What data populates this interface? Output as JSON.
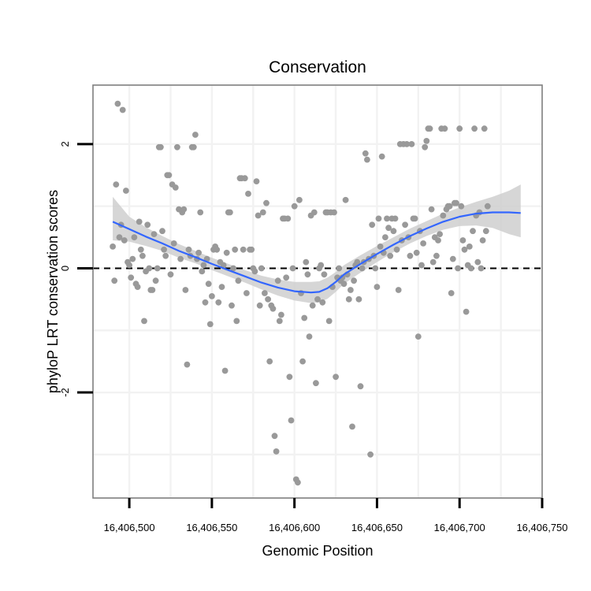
{
  "chart_data": {
    "type": "scatter",
    "title": "Conservation",
    "xlabel": "Genomic Position",
    "ylabel": "phyloP LRT conservation scores",
    "xlim": [
      16406478,
      16406750
    ],
    "ylim": [
      -3.7,
      2.95
    ],
    "x_ticks": [
      16406500,
      16406550,
      16406600,
      16406650,
      16406700,
      16406750
    ],
    "x_tick_labels": [
      "16,406,500",
      "16,406,550",
      "16,406,600",
      "16,406,650",
      "16,406,700",
      "16,406,750"
    ],
    "y_ticks": [
      2,
      0,
      -2
    ],
    "y_tick_labels": [
      "2",
      "0",
      "-2"
    ],
    "grid": true,
    "reference_line": {
      "y": 0,
      "style": "dashed"
    },
    "colors": {
      "points": "#999999",
      "smooth": "#3366ff",
      "band": "#cccccc",
      "panel_border": "#7f7f7f",
      "grid": "#f2f2f2"
    },
    "points": [
      [
        16406490,
        0.35
      ],
      [
        16406491,
        -0.2
      ],
      [
        16406492,
        1.35
      ],
      [
        16406493,
        2.65
      ],
      [
        16406494,
        0.5
      ],
      [
        16406495,
        0.7
      ],
      [
        16406496,
        2.55
      ],
      [
        16406497,
        0.45
      ],
      [
        16406498,
        1.25
      ],
      [
        16406499,
        0.1
      ],
      [
        16406500,
        0.05
      ],
      [
        16406501,
        -0.15
      ],
      [
        16406502,
        0.15
      ],
      [
        16406503,
        0.5
      ],
      [
        16406504,
        -0.25
      ],
      [
        16406505,
        -0.3
      ],
      [
        16406506,
        0.75
      ],
      [
        16406507,
        0.3
      ],
      [
        16406508,
        0.2
      ],
      [
        16406509,
        -0.85
      ],
      [
        16406510,
        -0.05
      ],
      [
        16406511,
        0.7
      ],
      [
        16406512,
        0.0
      ],
      [
        16406513,
        -0.35
      ],
      [
        16406514,
        -0.35
      ],
      [
        16406515,
        0.55
      ],
      [
        16406516,
        -0.2
      ],
      [
        16406517,
        0.0
      ],
      [
        16406518,
        1.95
      ],
      [
        16406519,
        1.95
      ],
      [
        16406520,
        0.6
      ],
      [
        16406521,
        0.3
      ],
      [
        16406522,
        0.2
      ],
      [
        16406523,
        1.5
      ],
      [
        16406524,
        1.5
      ],
      [
        16406525,
        -0.1
      ],
      [
        16406526,
        1.35
      ],
      [
        16406527,
        0.4
      ],
      [
        16406528,
        1.3
      ],
      [
        16406529,
        1.95
      ],
      [
        16406530,
        0.95
      ],
      [
        16406531,
        0.15
      ],
      [
        16406532,
        0.9
      ],
      [
        16406533,
        0.95
      ],
      [
        16406534,
        -0.35
      ],
      [
        16406535,
        -1.55
      ],
      [
        16406536,
        0.3
      ],
      [
        16406537,
        0.2
      ],
      [
        16406538,
        1.95
      ],
      [
        16406539,
        1.95
      ],
      [
        16406540,
        2.15
      ],
      [
        16406541,
        0.15
      ],
      [
        16406542,
        0.25
      ],
      [
        16406543,
        0.9
      ],
      [
        16406544,
        -0.05
      ],
      [
        16406545,
        0.05
      ],
      [
        16406546,
        -0.55
      ],
      [
        16406547,
        0.15
      ],
      [
        16406548,
        -0.25
      ],
      [
        16406549,
        -0.9
      ],
      [
        16406550,
        -0.45
      ],
      [
        16406551,
        0.3
      ],
      [
        16406552,
        0.35
      ],
      [
        16406553,
        0.3
      ],
      [
        16406554,
        -0.55
      ],
      [
        16406555,
        0.1
      ],
      [
        16406556,
        -0.3
      ],
      [
        16406557,
        0.05
      ],
      [
        16406558,
        -1.65
      ],
      [
        16406559,
        0.25
      ],
      [
        16406560,
        0.9
      ],
      [
        16406561,
        0.9
      ],
      [
        16406562,
        -0.6
      ],
      [
        16406563,
        0.0
      ],
      [
        16406564,
        0.3
      ],
      [
        16406565,
        -0.85
      ],
      [
        16406566,
        -0.2
      ],
      [
        16406567,
        1.45
      ],
      [
        16406568,
        1.45
      ],
      [
        16406569,
        0.3
      ],
      [
        16406570,
        1.45
      ],
      [
        16406571,
        -0.4
      ],
      [
        16406572,
        1.2
      ],
      [
        16406573,
        0.3
      ],
      [
        16406574,
        0.3
      ],
      [
        16406575,
        0.0
      ],
      [
        16406576,
        -0.05
      ],
      [
        16406577,
        1.4
      ],
      [
        16406578,
        0.85
      ],
      [
        16406579,
        -0.6
      ],
      [
        16406580,
        0.0
      ],
      [
        16406581,
        0.9
      ],
      [
        16406582,
        -0.4
      ],
      [
        16406583,
        1.05
      ],
      [
        16406584,
        -0.5
      ],
      [
        16406585,
        -1.5
      ],
      [
        16406586,
        -0.6
      ],
      [
        16406587,
        -0.65
      ],
      [
        16406588,
        -2.7
      ],
      [
        16406589,
        -2.95
      ],
      [
        16406590,
        -0.2
      ],
      [
        16406591,
        -0.85
      ],
      [
        16406592,
        -0.75
      ],
      [
        16406593,
        0.8
      ],
      [
        16406594,
        0.8
      ],
      [
        16406595,
        -0.15
      ],
      [
        16406596,
        0.8
      ],
      [
        16406597,
        -1.75
      ],
      [
        16406598,
        -2.45
      ],
      [
        16406599,
        0.0
      ],
      [
        16406600,
        1.0
      ],
      [
        16406601,
        -3.4
      ],
      [
        16406602,
        -3.45
      ],
      [
        16406603,
        1.1
      ],
      [
        16406604,
        -0.4
      ],
      [
        16406605,
        -1.5
      ],
      [
        16406606,
        -0.8
      ],
      [
        16406607,
        0.1
      ],
      [
        16406608,
        -0.1
      ],
      [
        16406609,
        -1.1
      ],
      [
        16406610,
        0.85
      ],
      [
        16406611,
        -0.6
      ],
      [
        16406612,
        0.9
      ],
      [
        16406613,
        -1.85
      ],
      [
        16406614,
        -0.5
      ],
      [
        16406615,
        0.0
      ],
      [
        16406616,
        0.05
      ],
      [
        16406617,
        -0.55
      ],
      [
        16406618,
        -0.1
      ],
      [
        16406619,
        0.9
      ],
      [
        16406620,
        0.9
      ],
      [
        16406621,
        -0.85
      ],
      [
        16406622,
        0.9
      ],
      [
        16406623,
        -0.3
      ],
      [
        16406624,
        0.9
      ],
      [
        16406625,
        -1.75
      ],
      [
        16406626,
        -0.15
      ],
      [
        16406627,
        0.0
      ],
      [
        16406628,
        -0.2
      ],
      [
        16406629,
        -0.15
      ],
      [
        16406630,
        -0.25
      ],
      [
        16406631,
        1.1
      ],
      [
        16406632,
        -0.1
      ],
      [
        16406633,
        -0.5
      ],
      [
        16406634,
        -0.35
      ],
      [
        16406635,
        -2.55
      ],
      [
        16406636,
        -0.2
      ],
      [
        16406637,
        0.05
      ],
      [
        16406638,
        0.1
      ],
      [
        16406639,
        -0.5
      ],
      [
        16406640,
        -1.9
      ],
      [
        16406641,
        0.0
      ],
      [
        16406642,
        0.1
      ],
      [
        16406643,
        1.85
      ],
      [
        16406644,
        1.75
      ],
      [
        16406645,
        0.15
      ],
      [
        16406646,
        -3.0
      ],
      [
        16406647,
        0.7
      ],
      [
        16406648,
        0.2
      ],
      [
        16406649,
        0.0
      ],
      [
        16406650,
        -0.3
      ],
      [
        16406651,
        0.8
      ],
      [
        16406652,
        0.35
      ],
      [
        16406653,
        1.8
      ],
      [
        16406654,
        0.25
      ],
      [
        16406655,
        0.5
      ],
      [
        16406656,
        0.8
      ],
      [
        16406657,
        0.65
      ],
      [
        16406658,
        0.2
      ],
      [
        16406659,
        0.8
      ],
      [
        16406660,
        0.6
      ],
      [
        16406661,
        0.8
      ],
      [
        16406662,
        0.3
      ],
      [
        16406663,
        -0.35
      ],
      [
        16406664,
        2.0
      ],
      [
        16406665,
        0.45
      ],
      [
        16406666,
        2.0
      ],
      [
        16406667,
        0.7
      ],
      [
        16406668,
        2.0
      ],
      [
        16406669,
        0.5
      ],
      [
        16406670,
        0.2
      ],
      [
        16406671,
        2.0
      ],
      [
        16406672,
        0.8
      ],
      [
        16406673,
        0.8
      ],
      [
        16406674,
        0.25
      ],
      [
        16406675,
        -1.1
      ],
      [
        16406676,
        0.6
      ],
      [
        16406677,
        0.05
      ],
      [
        16406678,
        0.4
      ],
      [
        16406679,
        1.95
      ],
      [
        16406680,
        2.05
      ],
      [
        16406681,
        2.25
      ],
      [
        16406682,
        2.25
      ],
      [
        16406683,
        0.95
      ],
      [
        16406684,
        0.1
      ],
      [
        16406685,
        0.5
      ],
      [
        16406686,
        0.2
      ],
      [
        16406687,
        0.45
      ],
      [
        16406688,
        0.55
      ],
      [
        16406689,
        2.25
      ],
      [
        16406690,
        0.85
      ],
      [
        16406691,
        2.25
      ],
      [
        16406692,
        0.95
      ],
      [
        16406693,
        1.0
      ],
      [
        16406694,
        1.0
      ],
      [
        16406695,
        -0.4
      ],
      [
        16406696,
        0.15
      ],
      [
        16406697,
        1.05
      ],
      [
        16406698,
        1.05
      ],
      [
        16406699,
        0.0
      ],
      [
        16406700,
        2.25
      ],
      [
        16406701,
        1.0
      ],
      [
        16406702,
        0.45
      ],
      [
        16406703,
        0.3
      ],
      [
        16406704,
        -0.7
      ],
      [
        16406705,
        0.05
      ],
      [
        16406706,
        0.35
      ],
      [
        16406707,
        0.0
      ],
      [
        16406708,
        0.6
      ],
      [
        16406709,
        2.25
      ],
      [
        16406710,
        0.85
      ],
      [
        16406711,
        0.1
      ],
      [
        16406712,
        0.9
      ],
      [
        16406713,
        0.0
      ],
      [
        16406714,
        0.45
      ],
      [
        16406715,
        2.25
      ],
      [
        16406716,
        0.6
      ],
      [
        16406717,
        1.0
      ]
    ],
    "smooth": {
      "method": "loess",
      "x": [
        16406490,
        16406500,
        16406510,
        16406520,
        16406530,
        16406540,
        16406550,
        16406560,
        16406570,
        16406580,
        16406590,
        16406600,
        16406610,
        16406615,
        16406620,
        16406625,
        16406630,
        16406640,
        16406650,
        16406660,
        16406670,
        16406680,
        16406690,
        16406700,
        16406710,
        16406720,
        16406730,
        16406737
      ],
      "y": [
        0.75,
        0.63,
        0.51,
        0.4,
        0.28,
        0.18,
        0.07,
        -0.03,
        -0.13,
        -0.23,
        -0.31,
        -0.37,
        -0.39,
        -0.38,
        -0.32,
        -0.22,
        -0.1,
        0.07,
        0.23,
        0.38,
        0.52,
        0.64,
        0.75,
        0.83,
        0.88,
        0.9,
        0.9,
        0.89
      ],
      "ci_low": [
        0.45,
        0.43,
        0.36,
        0.28,
        0.17,
        0.08,
        -0.03,
        -0.13,
        -0.23,
        -0.34,
        -0.44,
        -0.52,
        -0.56,
        -0.55,
        -0.49,
        -0.38,
        -0.25,
        -0.07,
        0.1,
        0.26,
        0.4,
        0.52,
        0.62,
        0.68,
        0.69,
        0.65,
        0.55,
        0.5
      ],
      "ci_high": [
        1.15,
        0.83,
        0.66,
        0.52,
        0.39,
        0.28,
        0.17,
        0.07,
        -0.03,
        -0.12,
        -0.18,
        -0.22,
        -0.22,
        -0.21,
        -0.15,
        -0.06,
        0.05,
        0.21,
        0.36,
        0.5,
        0.64,
        0.76,
        0.88,
        0.98,
        1.07,
        1.15,
        1.25,
        1.35
      ]
    }
  }
}
